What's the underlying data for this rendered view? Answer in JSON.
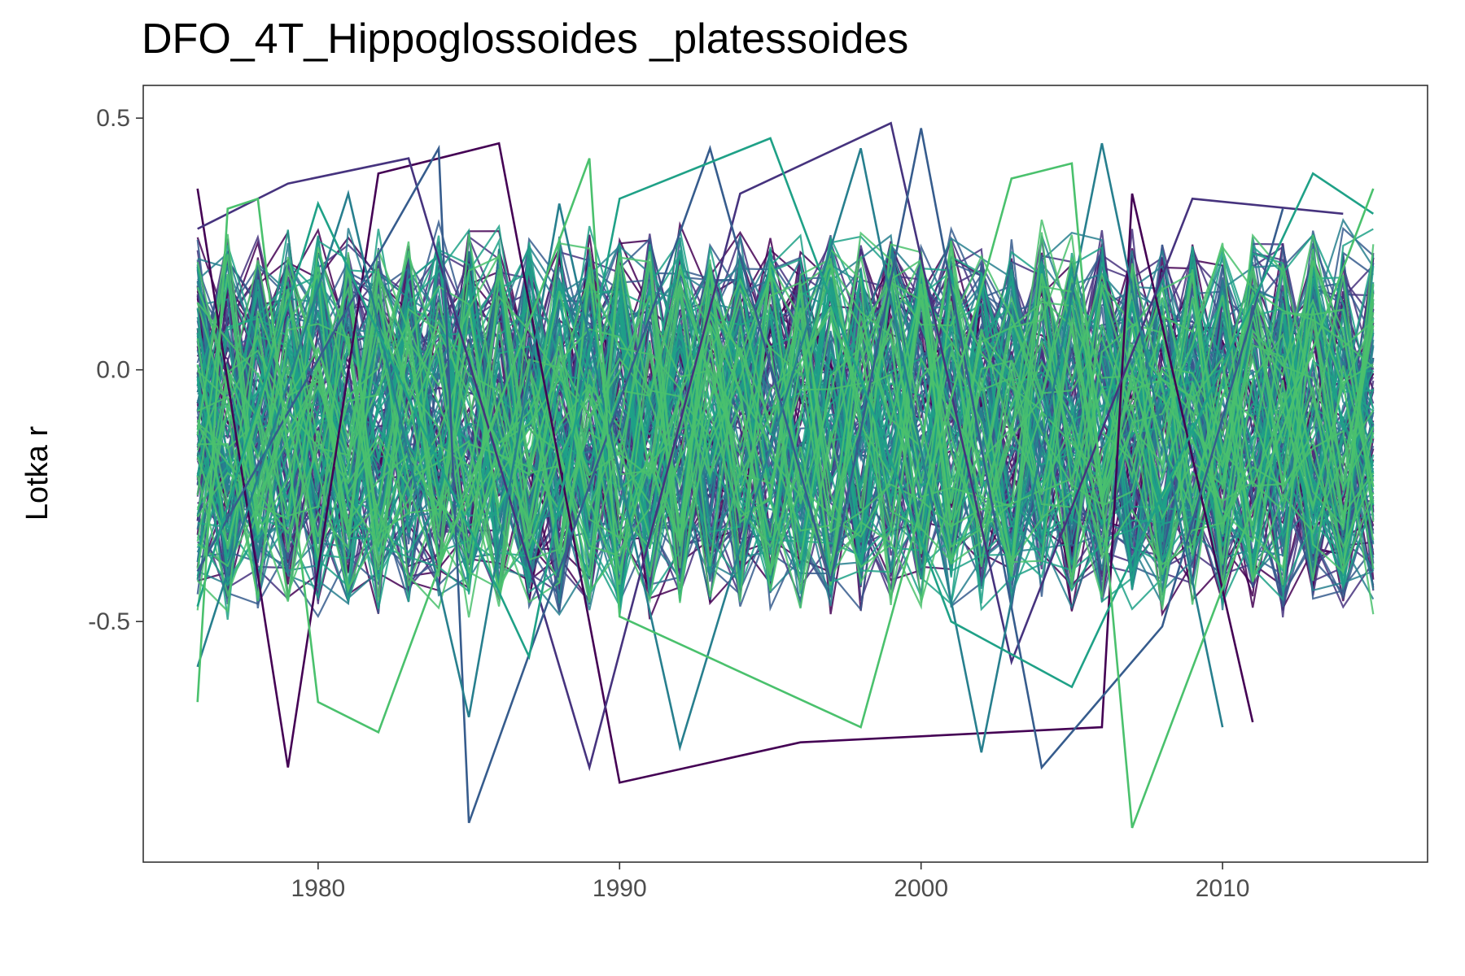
{
  "chart_data": {
    "type": "line",
    "title": "DFO_4T_Hippoglossoides _platessoides",
    "xlabel": "",
    "ylabel": "Lotka r",
    "xlim": [
      1974.2,
      2016.8
    ],
    "ylim": [
      -0.978,
      0.565
    ],
    "x_ticks": [
      1980,
      1990,
      2000,
      2010
    ],
    "x_tick_labels": [
      "1980",
      "1990",
      "2000",
      "2010"
    ],
    "y_ticks": [
      0.5,
      0.0,
      -0.5
    ],
    "y_tick_labels": [
      "0.5",
      "0.0",
      "-0.5"
    ],
    "grid": false,
    "legend": "none",
    "x_range": [
      1976,
      2015
    ],
    "colors": [
      "#440154",
      "#46337E",
      "#365C8D",
      "#277F8E",
      "#1FA187",
      "#4AC16D"
    ],
    "highlighted_series": [
      {
        "name": "",
        "color": "#440154",
        "x": [
          1976,
          1979,
          1982,
          1986,
          1990,
          1996,
          2006,
          2007,
          2011
        ],
        "y": [
          0.36,
          -0.79,
          0.39,
          0.45,
          -0.82,
          -0.74,
          -0.71,
          0.35,
          -0.7
        ]
      },
      {
        "name": "",
        "color": "#46337E",
        "x": [
          1976,
          1979,
          1983,
          1989,
          1994,
          1999,
          2003,
          2009,
          2014
        ],
        "y": [
          0.28,
          0.37,
          0.42,
          -0.79,
          0.35,
          0.49,
          -0.58,
          0.34,
          0.31
        ]
      },
      {
        "name": "",
        "color": "#365C8D",
        "x": [
          1976,
          1984,
          1985,
          1993,
          1997,
          2000,
          2004,
          2008,
          2012
        ],
        "y": [
          -0.4,
          0.44,
          -0.9,
          0.44,
          -0.42,
          0.48,
          -0.79,
          -0.51,
          0.32
        ]
      },
      {
        "name": "",
        "color": "#277F8E",
        "x": [
          1976,
          1981,
          1985,
          1988,
          1992,
          1998,
          2002,
          2006,
          2010
        ],
        "y": [
          -0.59,
          0.35,
          -0.69,
          0.33,
          -0.75,
          0.44,
          -0.76,
          0.45,
          -0.71
        ]
      },
      {
        "name": "",
        "color": "#1FA187",
        "x": [
          1976,
          1980,
          1987,
          1990,
          1995,
          2001,
          2005,
          2013,
          2015
        ],
        "y": [
          -0.47,
          0.33,
          -0.57,
          0.34,
          0.46,
          -0.5,
          -0.63,
          0.39,
          0.31
        ]
      },
      {
        "name": "",
        "color": "#4AC16D",
        "x": [
          1976,
          1977,
          1978,
          1980,
          1982,
          1989,
          1990,
          1998,
          2003,
          2005,
          2007,
          2015
        ],
        "y": [
          -0.66,
          0.32,
          0.34,
          -0.66,
          -0.72,
          0.42,
          -0.49,
          -0.71,
          0.38,
          0.41,
          -0.91,
          0.36
        ]
      }
    ]
  }
}
